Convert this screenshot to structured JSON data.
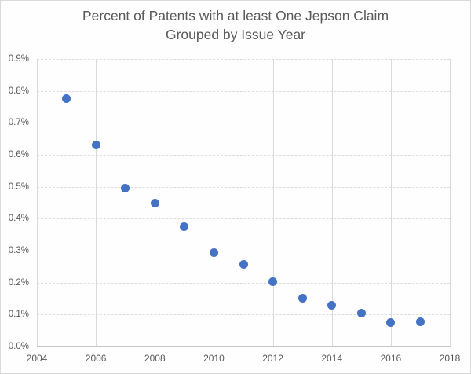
{
  "chart_data": {
    "type": "scatter",
    "title": "Percent of Patents with at least One Jepson Claim Grouped by Issue Year",
    "title_line1": "Percent of Patents with at least One Jepson Claim",
    "title_line2": "Grouped by Issue Year",
    "xlabel": "",
    "ylabel": "",
    "series": [
      {
        "name": "Percent of patents with at least one Jepson claim",
        "x": [
          2005,
          2006,
          2007,
          2008,
          2009,
          2010,
          2011,
          2012,
          2013,
          2014,
          2015,
          2016,
          2017
        ],
        "y": [
          0.775,
          0.63,
          0.495,
          0.45,
          0.375,
          0.293,
          0.256,
          0.203,
          0.151,
          0.129,
          0.105,
          0.075,
          0.077
        ]
      }
    ],
    "y_unit": "percent",
    "xlim": [
      2004,
      2018
    ],
    "ylim": [
      0.0,
      0.9
    ],
    "x_tick_values": [
      2004,
      2006,
      2008,
      2010,
      2012,
      2014,
      2016,
      2018
    ],
    "x_tick_labels": [
      "2004",
      "2006",
      "2008",
      "2010",
      "2012",
      "2014",
      "2016",
      "2018"
    ],
    "y_tick_values": [
      0.0,
      0.1,
      0.2,
      0.3,
      0.4,
      0.5,
      0.6,
      0.7,
      0.8,
      0.9
    ],
    "y_tick_labels": [
      "0.0%",
      "0.1%",
      "0.2%",
      "0.3%",
      "0.4%",
      "0.5%",
      "0.6%",
      "0.7%",
      "0.8%",
      "0.9%"
    ],
    "grid": true,
    "legend_position": "none",
    "colors": {
      "marker": "#4472c4",
      "gridline": "#d9d9d9",
      "axis_line": "#c6c6c6",
      "tick_text": "#595959",
      "title_text": "#595959",
      "background": "#fefefe",
      "chart_border": "#d9d9d9"
    }
  }
}
